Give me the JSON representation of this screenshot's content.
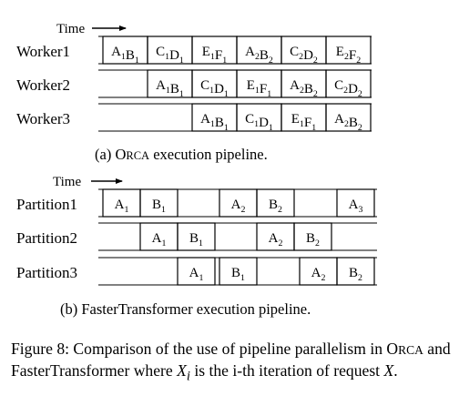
{
  "orca": {
    "time_label": "Time",
    "rows": [
      {
        "label": "Worker1",
        "cells": [
          {
            "items": [
              [
                "A",
                "1"
              ],
              [
                "B",
                "1"
              ]
            ]
          },
          {
            "items": [
              [
                "C",
                "1"
              ],
              [
                "D",
                "1"
              ]
            ]
          },
          {
            "items": [
              [
                "E",
                "1"
              ],
              [
                "F",
                "1"
              ]
            ]
          },
          {
            "items": [
              [
                "A",
                "2"
              ],
              [
                "B",
                "2"
              ]
            ]
          },
          {
            "items": [
              [
                "C",
                "2"
              ],
              [
                "D",
                "2"
              ]
            ]
          },
          {
            "items": [
              [
                "E",
                "2"
              ],
              [
                "F",
                "2"
              ]
            ]
          }
        ]
      },
      {
        "label": "Worker2",
        "cells": [
          {
            "items": [
              [
                "A",
                "1"
              ],
              [
                "B",
                "1"
              ]
            ]
          },
          {
            "items": [
              [
                "C",
                "1"
              ],
              [
                "D",
                "1"
              ]
            ]
          },
          {
            "items": [
              [
                "E",
                "1"
              ],
              [
                "F",
                "1"
              ]
            ]
          },
          {
            "items": [
              [
                "A",
                "2"
              ],
              [
                "B",
                "2"
              ]
            ]
          },
          {
            "items": [
              [
                "C",
                "2"
              ],
              [
                "D",
                "2"
              ]
            ]
          }
        ]
      },
      {
        "label": "Worker3",
        "cells": [
          {
            "items": [
              [
                "A",
                "1"
              ],
              [
                "B",
                "1"
              ]
            ]
          },
          {
            "items": [
              [
                "C",
                "1"
              ],
              [
                "D",
                "1"
              ]
            ]
          },
          {
            "items": [
              [
                "E",
                "1"
              ],
              [
                "F",
                "1"
              ]
            ]
          },
          {
            "items": [
              [
                "A",
                "2"
              ],
              [
                "B",
                "2"
              ]
            ]
          }
        ]
      }
    ],
    "caption": {
      "prefix": "(a) ",
      "sc_first": "O",
      "sc_rest": "RCA",
      "suffix": " execution pipeline."
    }
  },
  "ft": {
    "time_label": "Time",
    "rows": [
      {
        "label": "Partition1",
        "cells": [
          {
            "items": [
              [
                "A",
                "1"
              ]
            ]
          },
          {
            "items": [
              [
                "B",
                "1"
              ]
            ]
          },
          {
            "items": [
              [
                "A",
                "2"
              ]
            ]
          },
          {
            "items": [
              [
                "B",
                "2"
              ]
            ]
          },
          {
            "items": [
              [
                "A",
                "3"
              ]
            ]
          }
        ]
      },
      {
        "label": "Partition2",
        "cells": [
          {
            "items": [
              [
                "A",
                "1"
              ]
            ]
          },
          {
            "items": [
              [
                "B",
                "1"
              ]
            ]
          },
          {
            "items": [
              [
                "A",
                "2"
              ]
            ]
          },
          {
            "items": [
              [
                "B",
                "2"
              ]
            ]
          }
        ]
      },
      {
        "label": "Partition3",
        "cells": [
          {
            "items": [
              [
                "A",
                "1"
              ]
            ]
          },
          {
            "items": [
              [
                "B",
                "1"
              ]
            ]
          },
          {
            "items": [
              [
                "A",
                "2"
              ]
            ]
          },
          {
            "items": [
              [
                "B",
                "2"
              ]
            ]
          }
        ]
      }
    ],
    "caption": "(b) FasterTransformer execution pipeline."
  },
  "figure_caption": {
    "label": "Figure 8:",
    "part1": " Comparison of the use of pipeline parallelism in ",
    "sc_first": "O",
    "sc_rest": "RCA",
    "part2": " and FasterTransformer where ",
    "var_x": "X",
    "var_sub": "i",
    "part3": " is the i-th iteration of request ",
    "var_request": "X",
    "part4": "."
  }
}
